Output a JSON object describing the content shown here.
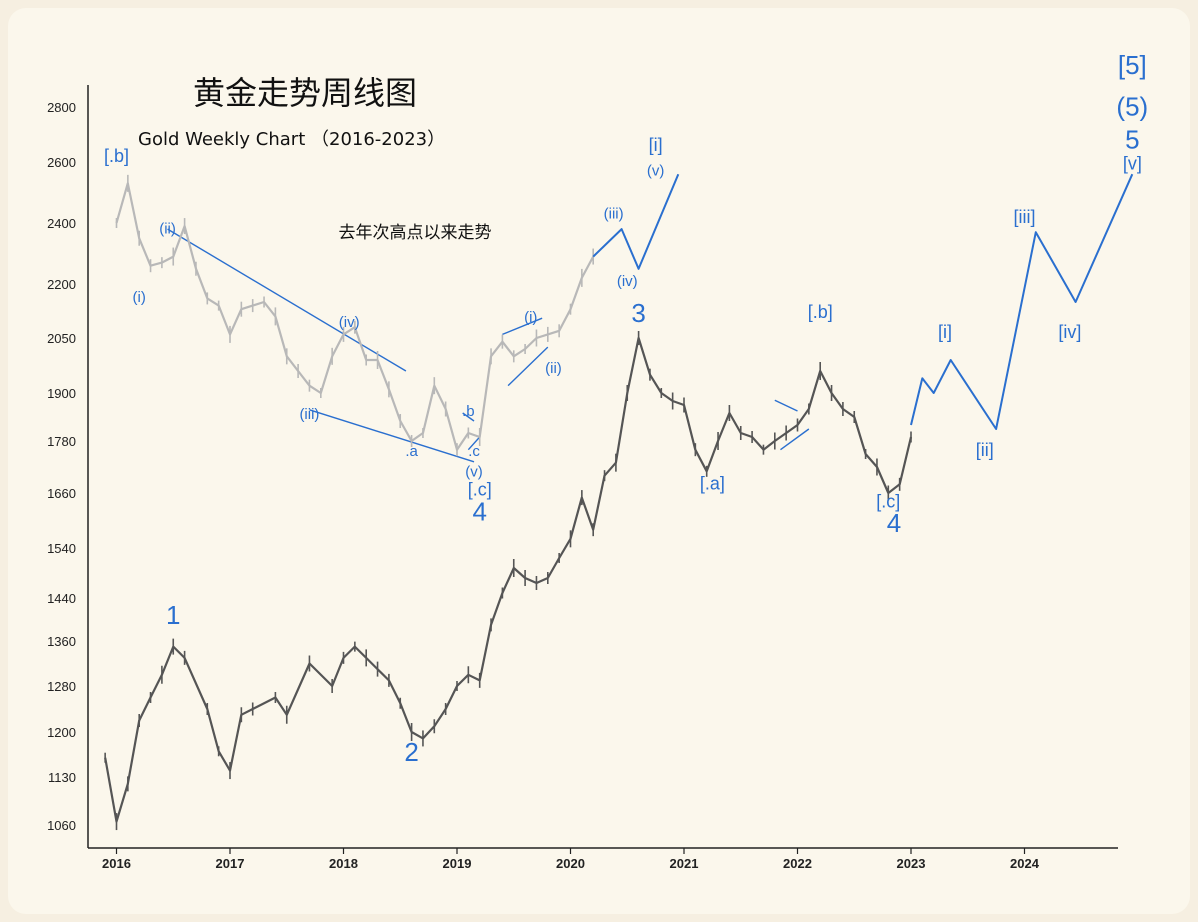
{
  "chart_data": {
    "type": "line",
    "title": "黄金走势周线图",
    "subtitle": "Gold Weekly Chart （2016-2023）",
    "annotation": "去年次高点以来走势",
    "y_ticks": [
      "2800",
      "2600",
      "2400",
      "2200",
      "2050",
      "1900",
      "1780",
      "1660",
      "1540",
      "1440",
      "1360",
      "1280",
      "1200",
      "1130",
      "1060"
    ],
    "x_ticks": [
      "2016",
      "2017",
      "2018",
      "2019",
      "2020",
      "2021",
      "2022",
      "2023",
      "2024"
    ],
    "grid": false,
    "colors": {
      "price": "#555555",
      "overlay": "#b8b8b8",
      "projection": "#2a6fcf",
      "labels": "#2a6fcf"
    },
    "series": [
      {
        "type": "price",
        "x": [
          2015.9,
          2016.0,
          2016.1,
          2016.2,
          2016.3,
          2016.4,
          2016.5,
          2016.6,
          2016.8,
          2016.9,
          2017.0,
          2017.1,
          2017.2,
          2017.4,
          2017.5,
          2017.7,
          2017.9,
          2018.0,
          2018.1,
          2018.2,
          2018.3,
          2018.4,
          2018.5,
          2018.6,
          2018.7,
          2018.8,
          2018.9,
          2019.0,
          2019.1,
          2019.2,
          2019.3,
          2019.4,
          2019.5,
          2019.6,
          2019.7,
          2019.8,
          2019.9,
          2020.0,
          2020.1,
          2020.2,
          2020.3,
          2020.4,
          2020.5,
          2020.6,
          2020.7,
          2020.8,
          2020.9,
          2021.0,
          2021.1,
          2021.2,
          2021.3,
          2021.4,
          2021.5,
          2021.6,
          2021.7,
          2021.8,
          2021.9,
          2022.0,
          2022.1,
          2022.2,
          2022.3,
          2022.4,
          2022.5,
          2022.6,
          2022.7,
          2022.8,
          2022.9,
          2023.0
        ],
        "y": [
          1160,
          1065,
          1120,
          1220,
          1260,
          1300,
          1350,
          1330,
          1240,
          1170,
          1140,
          1230,
          1240,
          1260,
          1230,
          1320,
          1280,
          1330,
          1350,
          1330,
          1310,
          1290,
          1250,
          1200,
          1190,
          1210,
          1240,
          1280,
          1300,
          1290,
          1390,
          1450,
          1500,
          1480,
          1470,
          1480,
          1520,
          1560,
          1650,
          1580,
          1700,
          1730,
          1900,
          2050,
          1950,
          1900,
          1880,
          1870,
          1760,
          1710,
          1780,
          1850,
          1800,
          1790,
          1760,
          1780,
          1800,
          1820,
          1860,
          1960,
          1900,
          1860,
          1840,
          1750,
          1720,
          1660,
          1680,
          1790
        ],
        "labels": [
          {
            "text": "1",
            "x": 2016.5,
            "y": 1392
          },
          {
            "text": "2",
            "x": 2018.6,
            "y": 1155
          },
          {
            "text": "3",
            "x": 2020.6,
            "y": 2095
          },
          {
            "text": "[.a]",
            "x": 2021.25,
            "y": 1668
          },
          {
            "text": "[.b]",
            "x": 2022.2,
            "y": 2105
          },
          {
            "text": "[.c]",
            "x": 2022.8,
            "y": 1628
          },
          {
            "text": "4",
            "x": 2022.85,
            "y": 1575
          }
        ]
      },
      {
        "type": "overlay",
        "x": [
          2016.0,
          2016.1,
          2016.2,
          2016.3,
          2016.4,
          2016.5,
          2016.6,
          2016.7,
          2016.8,
          2016.9,
          2017.0,
          2017.1,
          2017.2,
          2017.3,
          2017.4,
          2017.5,
          2017.6,
          2017.7,
          2017.8,
          2017.9,
          2018.0,
          2018.1,
          2018.2,
          2018.3,
          2018.4,
          2018.5,
          2018.6,
          2018.7,
          2018.8,
          2018.9,
          2019.0,
          2019.1,
          2019.2,
          2019.3,
          2019.4,
          2019.5,
          2019.6,
          2019.7,
          2019.8,
          2019.9,
          2020.0,
          2020.1,
          2020.2
        ],
        "y": [
          2400,
          2530,
          2350,
          2260,
          2270,
          2290,
          2390,
          2250,
          2160,
          2140,
          2060,
          2130,
          2140,
          2150,
          2110,
          2000,
          1960,
          1920,
          1900,
          2000,
          2060,
          2080,
          1990,
          1990,
          1910,
          1830,
          1780,
          1800,
          1920,
          1860,
          1760,
          1800,
          1790,
          2000,
          2040,
          2000,
          2020,
          2050,
          2060,
          2070,
          2130,
          2220,
          2290
        ],
        "labels": [
          {
            "text": "[.b]",
            "x": 2016.0,
            "y": 2600
          },
          {
            "text": "(i)",
            "x": 2016.2,
            "y": 2150
          },
          {
            "text": "(ii)",
            "x": 2016.45,
            "y": 2365
          },
          {
            "text": "(iii)",
            "x": 2017.7,
            "y": 1835
          },
          {
            "text": "(iv)",
            "x": 2018.05,
            "y": 2080
          },
          {
            "text": ".a",
            "x": 2018.6,
            "y": 1745
          },
          {
            "text": ".b",
            "x": 2019.1,
            "y": 1843
          },
          {
            "text": ".c",
            "x": 2019.15,
            "y": 1745
          },
          {
            "text": "(v)",
            "x": 2019.15,
            "y": 1698
          },
          {
            "text": "[.c]",
            "x": 2019.2,
            "y": 1655
          },
          {
            "text": "4",
            "x": 2019.2,
            "y": 1600
          },
          {
            "text": "(i)",
            "x": 2019.65,
            "y": 2095
          },
          {
            "text": "(ii)",
            "x": 2019.85,
            "y": 1955
          }
        ]
      },
      {
        "type": "projection_2020",
        "x": [
          2020.2,
          2020.45,
          2020.6,
          2020.95
        ],
        "y": [
          2290,
          2380,
          2250,
          2560
        ],
        "labels": [
          {
            "text": "(iii)",
            "x": 2020.38,
            "y": 2415
          },
          {
            "text": "(iv)",
            "x": 2020.5,
            "y": 2195
          },
          {
            "text": "(v)",
            "x": 2020.75,
            "y": 2555
          },
          {
            "text": "[i]",
            "x": 2020.75,
            "y": 2640
          }
        ]
      },
      {
        "type": "projection_2023",
        "x": [
          2023.0,
          2023.1,
          2023.2,
          2023.35,
          2023.75,
          2024.1,
          2024.45,
          2024.95
        ],
        "y": [
          1820,
          1940,
          1900,
          1990,
          1810,
          2370,
          2150,
          2560
        ],
        "labels": [
          {
            "text": "[i]",
            "x": 2023.3,
            "y": 2050
          },
          {
            "text": "[ii]",
            "x": 2023.65,
            "y": 1745
          },
          {
            "text": "[iii]",
            "x": 2024.0,
            "y": 2400
          },
          {
            "text": "[iv]",
            "x": 2024.4,
            "y": 2050
          },
          {
            "text": "[v]",
            "x": 2024.95,
            "y": 2575
          },
          {
            "text": "5",
            "x": 2024.95,
            "y": 2650
          },
          {
            "text": "(5)",
            "x": 2024.95,
            "y": 2770
          },
          {
            "text": "[5]",
            "x": 2024.95,
            "y": 2920
          }
        ]
      }
    ]
  }
}
